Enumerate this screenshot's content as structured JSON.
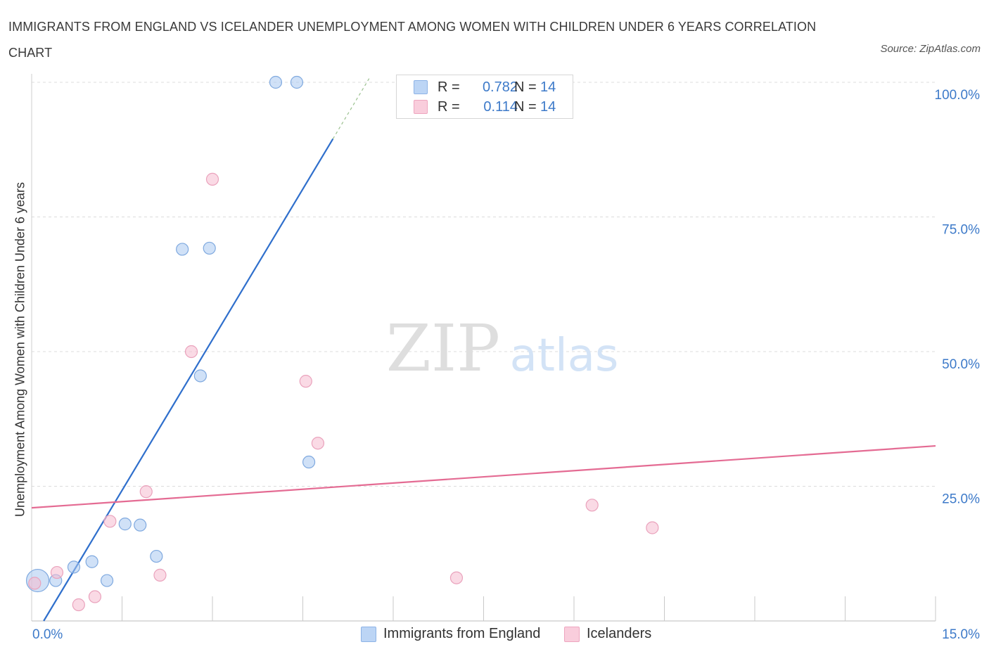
{
  "header": {
    "title": "IMMIGRANTS FROM ENGLAND VS ICELANDER UNEMPLOYMENT AMONG WOMEN WITH CHILDREN UNDER 6 YEARS CORRELATION CHART",
    "source": "Source: ZipAtlas.com"
  },
  "watermark": {
    "zip": "ZIP",
    "atlas": "atlas"
  },
  "colors": {
    "blue": "#a9c8f0",
    "blue_line": "#2f6fcc",
    "pink": "#f5bcd0",
    "pink_line": "#e46b93",
    "axis_text": "#3d7ac9",
    "grid": "#dcdcdc"
  },
  "legend": {
    "rows": [
      {
        "r_label": "R =",
        "r_value": "0.782",
        "n_label": "N =",
        "n_value": "14"
      },
      {
        "r_label": "R =",
        "r_value": "0.114",
        "n_label": "N =",
        "n_value": "14"
      }
    ]
  },
  "bottom_legend": {
    "items": [
      {
        "label": "Immigrants from England"
      },
      {
        "label": "Icelanders"
      }
    ]
  },
  "chart_data": {
    "type": "scatter",
    "title": "IMMIGRANTS FROM ENGLAND VS ICELANDER UNEMPLOYMENT AMONG WOMEN WITH CHILDREN UNDER 6 YEARS CORRELATION CHART",
    "xlabel": "",
    "ylabel": "Unemployment Among Women with Children Under 6 years",
    "xlim": [
      0,
      15
    ],
    "ylim": [
      0,
      100
    ],
    "x_tick_labels": [
      "0.0%",
      "15.0%"
    ],
    "y_ticks": [
      25,
      50,
      75,
      100
    ],
    "y_tick_labels": [
      "25.0%",
      "50.0%",
      "75.0%",
      "100.0%"
    ],
    "grid": true,
    "series": [
      {
        "name": "Immigrants from England",
        "color": "#a9c8f0",
        "stats": {
          "R": 0.782,
          "N": 14
        },
        "trend": {
          "x0": 0.2,
          "y0": 0,
          "x1": 5.0,
          "y1": 89.5,
          "dashed_to_x": 5.6
        },
        "points": [
          {
            "x": 0.1,
            "y": 7.5,
            "size": "large"
          },
          {
            "x": 0.4,
            "y": 7.5
          },
          {
            "x": 0.7,
            "y": 10.0
          },
          {
            "x": 1.0,
            "y": 11.0
          },
          {
            "x": 1.25,
            "y": 7.5
          },
          {
            "x": 1.55,
            "y": 18.0
          },
          {
            "x": 1.8,
            "y": 17.8
          },
          {
            "x": 2.07,
            "y": 12.0
          },
          {
            "x": 2.5,
            "y": 69.0
          },
          {
            "x": 2.8,
            "y": 45.5
          },
          {
            "x": 2.95,
            "y": 69.2
          },
          {
            "x": 4.6,
            "y": 29.5
          },
          {
            "x": 4.05,
            "y": 100.0
          },
          {
            "x": 4.4,
            "y": 100.0
          }
        ]
      },
      {
        "name": "Icelanders",
        "color": "#f5bcd0",
        "stats": {
          "R": 0.114,
          "N": 14
        },
        "trend": {
          "x0": 0.0,
          "y0": 21.0,
          "x1": 15.0,
          "y1": 32.5
        },
        "points": [
          {
            "x": 0.05,
            "y": 7.0
          },
          {
            "x": 0.42,
            "y": 9.0
          },
          {
            "x": 0.78,
            "y": 3.0
          },
          {
            "x": 1.05,
            "y": 4.5
          },
          {
            "x": 1.3,
            "y": 18.5
          },
          {
            "x": 1.9,
            "y": 24.0
          },
          {
            "x": 2.13,
            "y": 8.5
          },
          {
            "x": 2.65,
            "y": 50.0
          },
          {
            "x": 3.0,
            "y": 82.0
          },
          {
            "x": 4.55,
            "y": 44.5
          },
          {
            "x": 4.75,
            "y": 33.0
          },
          {
            "x": 7.05,
            "y": 8.0
          },
          {
            "x": 9.3,
            "y": 21.5
          },
          {
            "x": 10.3,
            "y": 17.3
          }
        ]
      }
    ]
  }
}
